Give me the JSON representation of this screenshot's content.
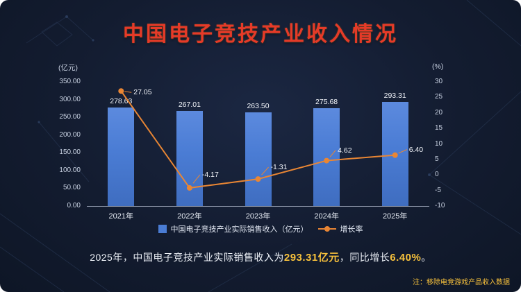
{
  "title": "中国电子竞技产业收入情况",
  "legend": {
    "bars": "中国电子竞技产业实际销售收入（亿元）",
    "line": "增长率"
  },
  "summary": {
    "prefix": "2025年，中国电子竞技产业实际销售收入为",
    "revenue_value": "293.31亿元",
    "middle": "，同比增长",
    "growth_value": "6.40%",
    "suffix": "。"
  },
  "note": "注：移除电竞游戏产品收入数据",
  "colors": {
    "background": "#131c30",
    "bar": "#4a7cd4",
    "line": "#e98634",
    "gold": "#f7c13c",
    "title_red": "#e63a28"
  },
  "chart_data": {
    "type": "bar+line combo",
    "categories": [
      "2021年",
      "2022年",
      "2023年",
      "2024年",
      "2025年"
    ],
    "series": [
      {
        "name": "中国电子竞技产业实际销售收入（亿元）",
        "type": "bar",
        "axis": "left",
        "values": [
          278.63,
          267.01,
          263.5,
          275.68,
          293.31
        ]
      },
      {
        "name": "增长率",
        "type": "line",
        "axis": "right",
        "values": [
          27.05,
          -4.17,
          -1.31,
          4.62,
          6.4
        ]
      }
    ],
    "bar_labels": [
      "278.63",
      "267.01",
      "263.50",
      "275.68",
      "293.31"
    ],
    "line_labels": [
      "27.05",
      "-4.17",
      "-1.31",
      "4.62",
      "6.40"
    ],
    "left_axis": {
      "label": "(亿元)",
      "min": 0,
      "max": 350,
      "step": 50,
      "tick_labels": [
        "0.00",
        "50.00",
        "100.00",
        "150.00",
        "200.00",
        "250.00",
        "300.00",
        "350.00"
      ]
    },
    "right_axis": {
      "label": "(%)",
      "min": -10,
      "max": 30,
      "step": 5,
      "tick_labels": [
        "-10",
        "-5",
        "0",
        "5",
        "10",
        "15",
        "20",
        "25",
        "30"
      ]
    },
    "grid": false,
    "legend_position": "bottom"
  }
}
